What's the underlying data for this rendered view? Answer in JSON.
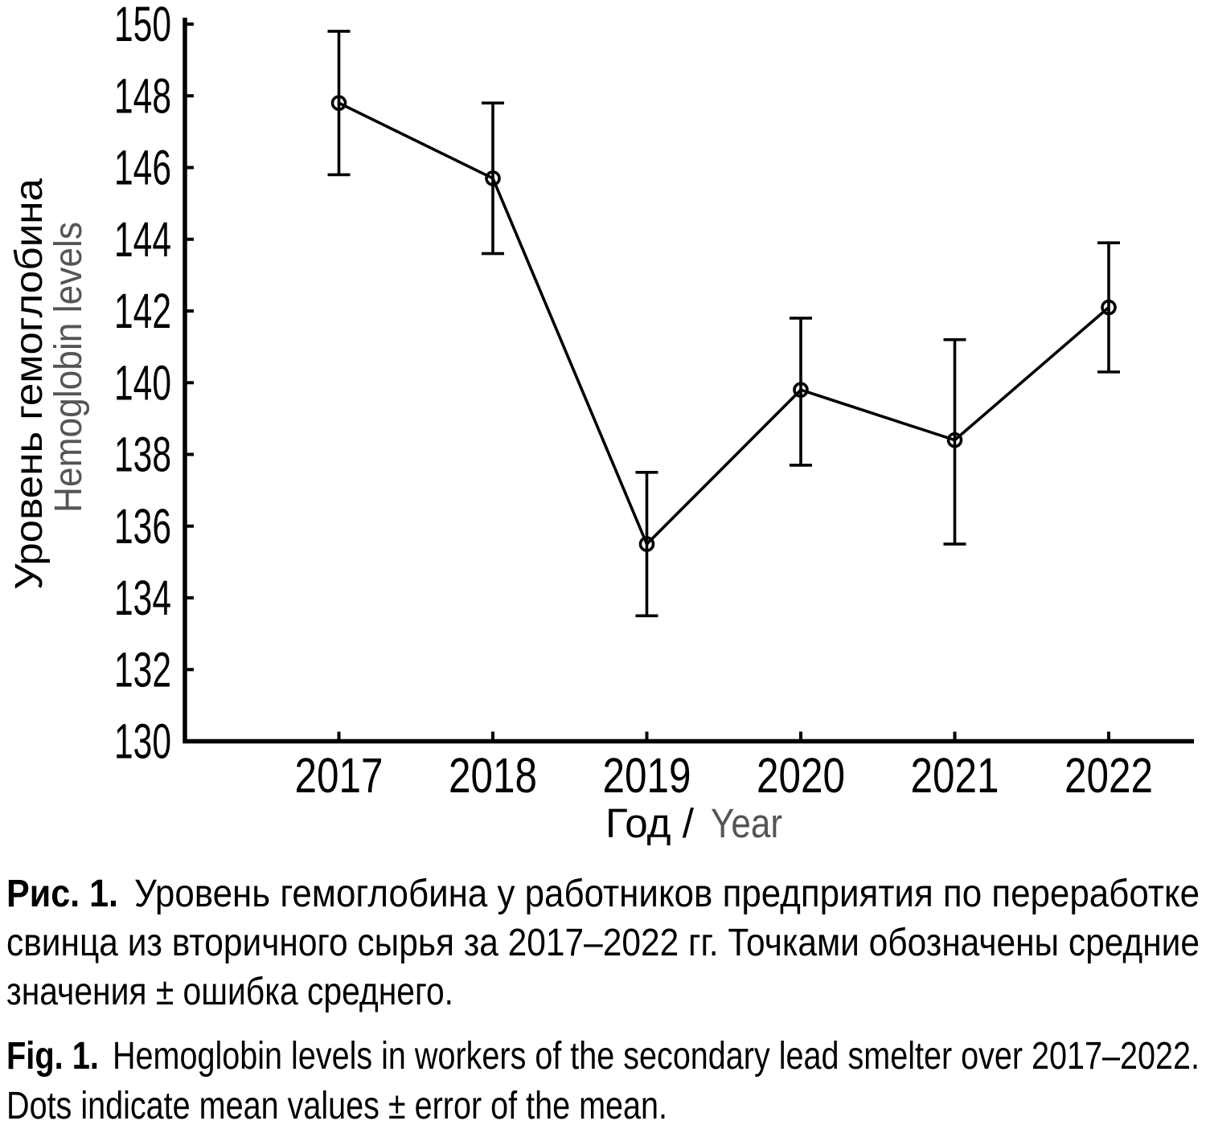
{
  "figure": {
    "caption_ru": {
      "label": "Рис. 1.",
      "line1": "Уровень гемоглобина у работников предприятия по переработке",
      "line2": "свинца из вторичного сырья за 2017–2022 гг. Точками обозначены средние",
      "line3": "значения ± ошибка среднего."
    },
    "caption_en": {
      "label": "Fig. 1.",
      "line1": "Hemoglobin levels in workers of the secondary lead smelter over 2017–2022.",
      "line2": "Dots indicate mean values ± error of the mean."
    }
  },
  "chart_data": {
    "type": "line",
    "title": "",
    "x_categories": [
      "2017",
      "2018",
      "2019",
      "2020",
      "2021",
      "2022"
    ],
    "series": [
      {
        "name": "Hemoglobin levels (mean ± error of the mean)",
        "values": [
          147.8,
          145.7,
          135.5,
          139.8,
          138.4,
          142.1
        ],
        "error_low": [
          145.8,
          143.6,
          133.5,
          137.7,
          135.5,
          140.3
        ],
        "error_high": [
          149.8,
          147.8,
          137.5,
          141.8,
          141.2,
          143.9
        ]
      }
    ],
    "xlabel_ru": "Год /",
    "xlabel_en": "Year",
    "ylabel_ru": "Уровень гемоглобина",
    "ylabel_en": "Hemoglobin levels",
    "ylim": [
      130,
      150
    ],
    "ytick_step": 2,
    "grid": false,
    "legend": "none",
    "marker": "open-circle",
    "colors": {
      "line": "#000000",
      "text": "#000000",
      "secondary_text": "#555555"
    }
  }
}
